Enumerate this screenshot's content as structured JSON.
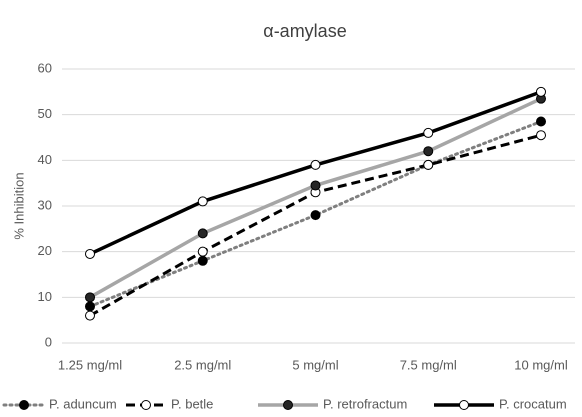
{
  "chart_data": {
    "type": "line",
    "title": "α-amylase",
    "y_label": "% Inhibition",
    "categories": [
      "1.25 mg/ml",
      "2.5 mg/ml",
      "5 mg/ml",
      "7.5 mg/ml",
      "10 mg/ml"
    ],
    "series": [
      {
        "name": "P. aduncum",
        "color": "#7f7f7f",
        "line_style": "dotted",
        "marker_fill": "#000000",
        "values": [
          8,
          18,
          28,
          39,
          48.5
        ]
      },
      {
        "name": "P. betle",
        "color": "#000000",
        "line_style": "dashed",
        "marker_fill": "#ffffff",
        "values": [
          6,
          20,
          33,
          39,
          45.5
        ]
      },
      {
        "name": "P. retrofractum",
        "color": "#a6a6a6",
        "line_style": "solid",
        "marker_fill": "#262626",
        "values": [
          10,
          24,
          34.5,
          42,
          53.5
        ]
      },
      {
        "name": "P. crocatum",
        "color": "#000000",
        "line_style": "solid",
        "marker_fill": "#ffffff",
        "values": [
          19.5,
          31,
          39,
          46,
          55
        ]
      }
    ],
    "ylim": [
      0,
      60
    ],
    "yticks": [
      0,
      10,
      20,
      30,
      40,
      50,
      60
    ],
    "grid": true,
    "legend": "bottom"
  }
}
